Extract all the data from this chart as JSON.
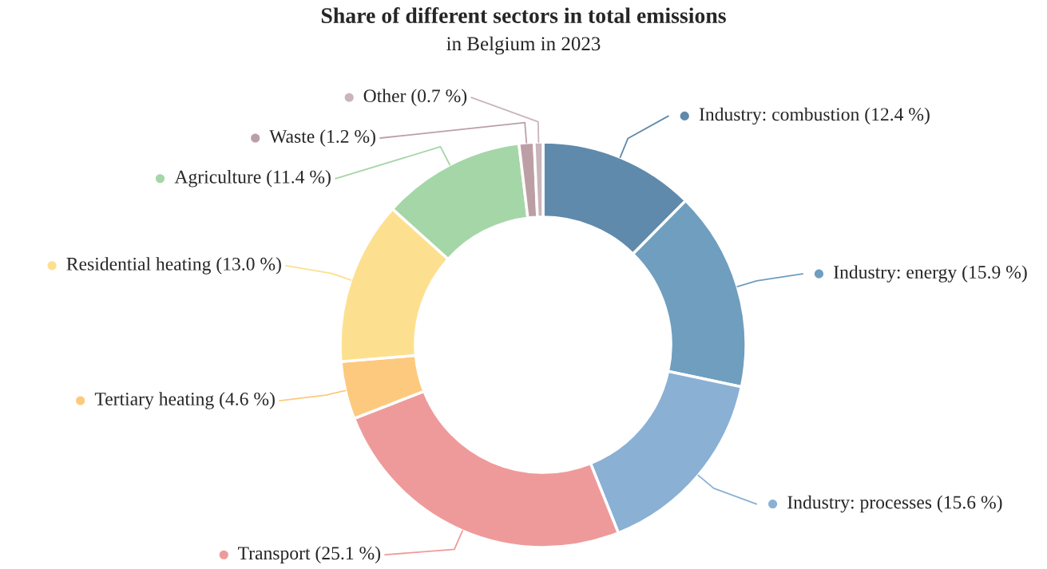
{
  "chart_data": {
    "type": "donut",
    "title": "Share of different sectors in total emissions",
    "subtitle": "in Belgium in 2023",
    "categories": [
      "Industry: combustion (12.4 %)",
      "Industry: energy (15.9 %)",
      "Industry: processes (15.6 %)",
      "Transport (25.1 %)",
      "Tertiary heating (4.6 %)",
      "Residential heating (13.0 %)",
      "Agriculture (11.4 %)",
      "Waste (1.2 %)",
      "Other (0.7 %)"
    ],
    "values": [
      12.4,
      15.9,
      15.6,
      25.1,
      4.6,
      13.0,
      11.4,
      1.2,
      0.7
    ],
    "legend": "right",
    "colors": [
      "#5f8aab",
      "#6f9ebf",
      "#8ab0d4",
      "#ef9a9a",
      "#fdc97e",
      "#fde08f",
      "#a5d6a7",
      "#bc9fa4",
      "#c9b5bb"
    ]
  }
}
